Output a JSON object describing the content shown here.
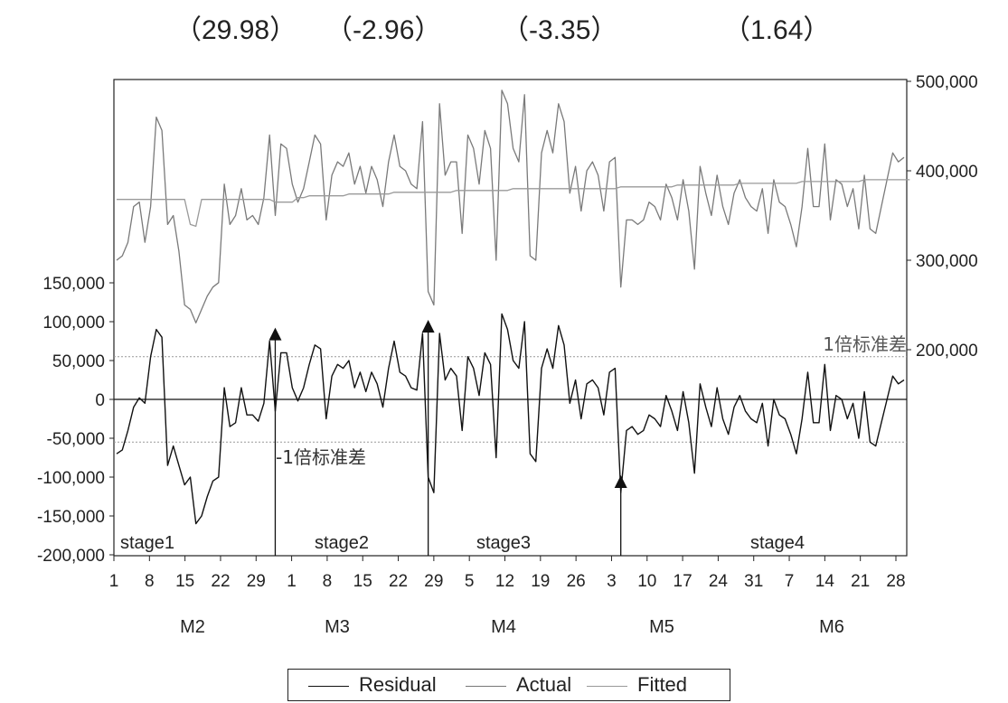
{
  "top_stats": [
    "（29.98）",
    "（-2.96）",
    "（-3.35）",
    "（1.64）"
  ],
  "chart_data": {
    "type": "line",
    "left_axis": {
      "ticks": [
        -200000,
        -150000,
        -100000,
        -50000,
        0,
        50000,
        100000,
        150000
      ],
      "tick_labels": [
        "-200,000",
        "-150,000",
        "-100,000",
        "-50,000",
        "0",
        "50,000",
        "100,000",
        "150,000"
      ]
    },
    "right_axis": {
      "ticks": [
        200000,
        300000,
        400000,
        500000
      ],
      "tick_labels": [
        "200,000",
        "300,000",
        "400,000",
        "500,000"
      ]
    },
    "x_tick_labels": [
      "1",
      "8",
      "15",
      "22",
      "29",
      "1",
      "8",
      "15",
      "22",
      "29",
      "5",
      "12",
      "19",
      "26",
      "3",
      "10",
      "17",
      "24",
      "31",
      "7",
      "14",
      "21",
      "28"
    ],
    "month_labels": [
      "M2",
      "M3",
      "M4",
      "M5",
      "M6"
    ],
    "stage_labels": [
      "stage1",
      "stage2",
      "stage3",
      "stage4"
    ],
    "annotations": {
      "plus_1_sd": "1倍标准差",
      "minus_1_sd": "-1倍标准差"
    },
    "sd_band": 55000,
    "legend": [
      "Residual",
      "Actual",
      "Fitted"
    ],
    "series": [
      {
        "name": "Residual",
        "axis": "left",
        "values": [
          -70000,
          -65000,
          -40000,
          -10000,
          2000,
          -5000,
          55000,
          90000,
          80000,
          -85000,
          -60000,
          -85000,
          -110000,
          -100000,
          -160000,
          -150000,
          -125000,
          -105000,
          -100000,
          15000,
          -35000,
          -30000,
          15000,
          -20000,
          -20000,
          -28000,
          -5000,
          75000,
          -15000,
          60000,
          60000,
          15000,
          -2000,
          15000,
          45000,
          70000,
          65000,
          -25000,
          30000,
          45000,
          40000,
          50000,
          15000,
          35000,
          10000,
          35000,
          20000,
          -10000,
          40000,
          75000,
          35000,
          30000,
          15000,
          12000,
          85000,
          -100000,
          -120000,
          85000,
          25000,
          40000,
          30000,
          -40000,
          55000,
          40000,
          5000,
          60000,
          45000,
          -75000,
          110000,
          90000,
          50000,
          40000,
          100000,
          -70000,
          -80000,
          40000,
          65000,
          40000,
          95000,
          70000,
          -5000,
          25000,
          -25000,
          20000,
          25000,
          15000,
          -20000,
          35000,
          40000,
          -120000,
          -40000,
          -35000,
          -45000,
          -40000,
          -20000,
          -25000,
          -35000,
          5000,
          -15000,
          -40000,
          10000,
          -30000,
          -95000,
          20000,
          -10000,
          -35000,
          15000,
          -25000,
          -45000,
          -10000,
          5000,
          -15000,
          -25000,
          -30000,
          -5000,
          -60000,
          0,
          -20000,
          -25000,
          -45000,
          -70000,
          -25000,
          35000,
          -30000,
          -30000,
          45000,
          -40000,
          5000,
          0,
          -25000,
          -5000,
          -50000,
          10000,
          -55000,
          -60000,
          -30000,
          0,
          30000,
          20000,
          25000
        ]
      },
      {
        "name": "Actual",
        "axis": "right",
        "values": [
          300000,
          305000,
          320000,
          360000,
          365000,
          320000,
          360000,
          460000,
          445000,
          340000,
          350000,
          310000,
          250000,
          245000,
          230000,
          245000,
          260000,
          270000,
          275000,
          385000,
          340000,
          350000,
          380000,
          345000,
          350000,
          340000,
          370000,
          440000,
          350000,
          430000,
          425000,
          385000,
          365000,
          380000,
          410000,
          440000,
          430000,
          345000,
          395000,
          410000,
          405000,
          420000,
          385000,
          405000,
          375000,
          405000,
          390000,
          360000,
          410000,
          440000,
          405000,
          400000,
          385000,
          380000,
          455000,
          265000,
          250000,
          475000,
          395000,
          410000,
          410000,
          330000,
          440000,
          425000,
          385000,
          445000,
          425000,
          300000,
          490000,
          475000,
          425000,
          410000,
          485000,
          305000,
          300000,
          420000,
          445000,
          420000,
          475000,
          455000,
          375000,
          405000,
          355000,
          400000,
          410000,
          395000,
          355000,
          410000,
          415000,
          270000,
          345000,
          345000,
          340000,
          345000,
          365000,
          360000,
          345000,
          385000,
          370000,
          345000,
          390000,
          355000,
          290000,
          405000,
          375000,
          350000,
          395000,
          360000,
          340000,
          375000,
          390000,
          370000,
          360000,
          355000,
          380000,
          330000,
          390000,
          365000,
          360000,
          340000,
          315000,
          360000,
          425000,
          360000,
          360000,
          430000,
          345000,
          390000,
          385000,
          360000,
          380000,
          335000,
          395000,
          335000,
          330000,
          360000,
          390000,
          420000,
          410000,
          415000
        ]
      },
      {
        "name": "Fitted",
        "axis": "right",
        "values": [
          368000,
          368000,
          368000,
          368000,
          368000,
          368000,
          368000,
          368000,
          368000,
          368000,
          368000,
          368000,
          368000,
          340000,
          338000,
          368000,
          368000,
          368000,
          368000,
          368000,
          368000,
          368000,
          368000,
          368000,
          368000,
          368000,
          368000,
          368000,
          365000,
          365000,
          365000,
          365000,
          370000,
          370000,
          372000,
          372000,
          372000,
          372000,
          372000,
          372000,
          372000,
          374000,
          374000,
          374000,
          374000,
          374000,
          374000,
          374000,
          374000,
          376000,
          376000,
          376000,
          376000,
          376000,
          376000,
          376000,
          376000,
          376000,
          376000,
          376000,
          378000,
          378000,
          378000,
          378000,
          378000,
          378000,
          378000,
          378000,
          378000,
          378000,
          380000,
          380000,
          380000,
          380000,
          380000,
          380000,
          380000,
          380000,
          380000,
          380000,
          380000,
          380000,
          380000,
          380000,
          380000,
          380000,
          380000,
          380000,
          380000,
          382000,
          382000,
          382000,
          382000,
          382000,
          382000,
          382000,
          382000,
          382000,
          382000,
          384000,
          384000,
          384000,
          384000,
          384000,
          384000,
          384000,
          384000,
          384000,
          384000,
          384000,
          386000,
          386000,
          386000,
          386000,
          386000,
          386000,
          386000,
          386000,
          386000,
          386000,
          386000,
          388000,
          388000,
          388000,
          388000,
          388000,
          388000,
          388000,
          388000,
          388000,
          388000,
          388000,
          390000,
          390000,
          390000,
          390000,
          390000,
          390000,
          390000,
          390000,
          390000
        ]
      }
    ],
    "stage_events_index": [
      28,
      55,
      89
    ],
    "arrow_values": [
      90000,
      100000,
      -100000
    ]
  }
}
